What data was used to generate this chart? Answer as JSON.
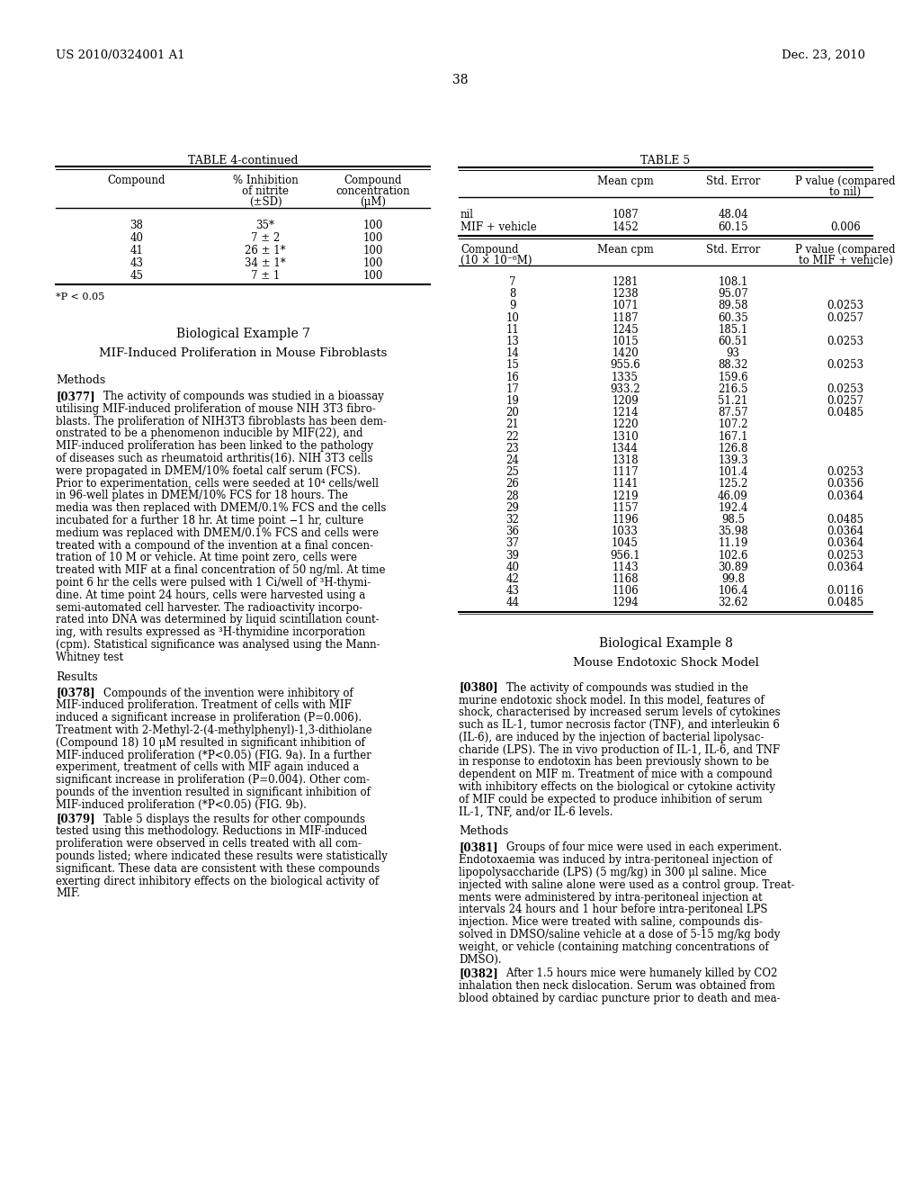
{
  "bg_color": "#ffffff",
  "header_left": "US 2010/0324001 A1",
  "header_right": "Dec. 23, 2010",
  "page_number": "38",
  "table4_title": "TABLE 4-continued",
  "table4_rows": [
    [
      "38",
      "35*",
      "100"
    ],
    [
      "40",
      "7 ± 2",
      "100"
    ],
    [
      "41",
      "26 ± 1*",
      "100"
    ],
    [
      "43",
      "34 ± 1*",
      "100"
    ],
    [
      "45",
      "7 ± 1",
      "100"
    ]
  ],
  "table4_footnote": "*P < 0.05",
  "bio_example7_title": "Biological Example 7",
  "bio_example7_subtitle": "MIF-Induced Proliferation in Mouse Fibroblasts",
  "methods_title": "Methods",
  "para_0377_lines": [
    "[0377]    The activity of compounds was studied in a bioassay",
    "utilising MIF-induced proliferation of mouse NIH 3T3 fibro-",
    "blasts. The proliferation of NIH3T3 fibroblasts has been dem-",
    "onstrated to be a phenomenon inducible by MIF(22), and",
    "MIF-induced proliferation has been linked to the pathology",
    "of diseases such as rheumatoid arthritis(16). NIH 3T3 cells",
    "were propagated in DMEM/10% foetal calf serum (FCS).",
    "Prior to experimentation, cells were seeded at 10⁴ cells/well",
    "in 96-well plates in DMEM/10% FCS for 18 hours. The",
    "media was then replaced with DMEM/0.1% FCS and the cells",
    "incubated for a further 18 hr. At time point −1 hr, culture",
    "medium was replaced with DMEM/0.1% FCS and cells were",
    "treated with a compound of the invention at a final concen-",
    "tration of 10 M or vehicle. At time point zero, cells were",
    "treated with MIF at a final concentration of 50 ng/ml. At time",
    "point 6 hr the cells were pulsed with 1 Ci/well of ³H-thymi-",
    "dine. At time point 24 hours, cells were harvested using a",
    "semi-automated cell harvester. The radioactivity incorpo-",
    "rated into DNA was determined by liquid scintillation count-",
    "ing, with results expressed as ³H-thymidine incorporation",
    "(cpm). Statistical significance was analysed using the Mann-",
    "Whitney test"
  ],
  "results_title": "Results",
  "para_0378_lines": [
    "[0378]    Compounds of the invention were inhibitory of",
    "MIF-induced proliferation. Treatment of cells with MIF",
    "induced a significant increase in proliferation (P=0.006).",
    "Treatment with 2-Methyl-2-(4-methylphenyl)-1,3-dithiolane",
    "(Compound 18) 10 μM resulted in significant inhibition of",
    "MIF-induced proliferation (*P<0.05) (FIG. 9a). In a further",
    "experiment, treatment of cells with MIF again induced a",
    "significant increase in proliferation (P=0.004). Other com-",
    "pounds of the invention resulted in significant inhibition of",
    "MIF-induced proliferation (*P<0.05) (FIG. 9b)."
  ],
  "para_0379_lines": [
    "[0379]    Table 5 displays the results for other compounds",
    "tested using this methodology. Reductions in MIF-induced",
    "proliferation were observed in cells treated with all com-",
    "pounds listed; where indicated these results were statistically",
    "significant. These data are consistent with these compounds",
    "exerting direct inhibitory effects on the biological activity of",
    "MIF."
  ],
  "table5_title": "TABLE 5",
  "table5_top_rows": [
    [
      "nil",
      "1087",
      "48.04",
      ""
    ],
    [
      "MIF + vehicle",
      "1452",
      "60.15",
      "0.006"
    ]
  ],
  "table5_rows": [
    [
      "7",
      "1281",
      "108.1",
      ""
    ],
    [
      "8",
      "1238",
      "95.07",
      ""
    ],
    [
      "9",
      "1071",
      "89.58",
      "0.0253"
    ],
    [
      "10",
      "1187",
      "60.35",
      "0.0257"
    ],
    [
      "11",
      "1245",
      "185.1",
      ""
    ],
    [
      "13",
      "1015",
      "60.51",
      "0.0253"
    ],
    [
      "14",
      "1420",
      "93",
      ""
    ],
    [
      "15",
      "955.6",
      "88.32",
      "0.0253"
    ],
    [
      "16",
      "1335",
      "159.6",
      ""
    ],
    [
      "17",
      "933.2",
      "216.5",
      "0.0253"
    ],
    [
      "19",
      "1209",
      "51.21",
      "0.0257"
    ],
    [
      "20",
      "1214",
      "87.57",
      "0.0485"
    ],
    [
      "21",
      "1220",
      "107.2",
      ""
    ],
    [
      "22",
      "1310",
      "167.1",
      ""
    ],
    [
      "23",
      "1344",
      "126.8",
      ""
    ],
    [
      "24",
      "1318",
      "139.3",
      ""
    ],
    [
      "25",
      "1117",
      "101.4",
      "0.0253"
    ],
    [
      "26",
      "1141",
      "125.2",
      "0.0356"
    ],
    [
      "28",
      "1219",
      "46.09",
      "0.0364"
    ],
    [
      "29",
      "1157",
      "192.4",
      ""
    ],
    [
      "32",
      "1196",
      "98.5",
      "0.0485"
    ],
    [
      "36",
      "1033",
      "35.98",
      "0.0364"
    ],
    [
      "37",
      "1045",
      "11.19",
      "0.0364"
    ],
    [
      "39",
      "956.1",
      "102.6",
      "0.0253"
    ],
    [
      "40",
      "1143",
      "30.89",
      "0.0364"
    ],
    [
      "42",
      "1168",
      "99.8",
      ""
    ],
    [
      "43",
      "1106",
      "106.4",
      "0.0116"
    ],
    [
      "44",
      "1294",
      "32.62",
      "0.0485"
    ]
  ],
  "bio_example8_title": "Biological Example 8",
  "bio_example8_subtitle": "Mouse Endotoxic Shock Model",
  "para_0380_lines": [
    "[0380]    The activity of compounds was studied in the",
    "murine endotoxic shock model. In this model, features of",
    "shock, characterised by increased serum levels of cytokines",
    "such as IL-1, tumor necrosis factor (TNF), and interleukin 6",
    "(IL-6), are induced by the injection of bacterial lipolysac-",
    "charide (LPS). The in vivo production of IL-1, IL-6, and TNF",
    "in response to endotoxin has been previously shown to be",
    "dependent on MIF m. Treatment of mice with a compound",
    "with inhibitory effects on the biological or cytokine activity",
    "of MIF could be expected to produce inhibition of serum",
    "IL-1, TNF, and/or IL-6 levels."
  ],
  "methods2_title": "Methods",
  "para_0381_lines": [
    "[0381]    Groups of four mice were used in each experiment.",
    "Endotoxaemia was induced by intra-peritoneal injection of",
    "lipopolysaccharide (LPS) (5 mg/kg) in 300 μl saline. Mice",
    "injected with saline alone were used as a control group. Treat-",
    "ments were administered by intra-peritoneal injection at",
    "intervals 24 hours and 1 hour before intra-peritoneal LPS",
    "injection. Mice were treated with saline, compounds dis-",
    "solved in DMSO/saline vehicle at a dose of 5-15 mg/kg body",
    "weight, or vehicle (containing matching concentrations of",
    "DMSO)."
  ],
  "para_0382_lines": [
    "[0382]    After 1.5 hours mice were humanely killed by CO2",
    "inhalation then neck dislocation. Serum was obtained from",
    "blood obtained by cardiac puncture prior to death and mea-"
  ]
}
